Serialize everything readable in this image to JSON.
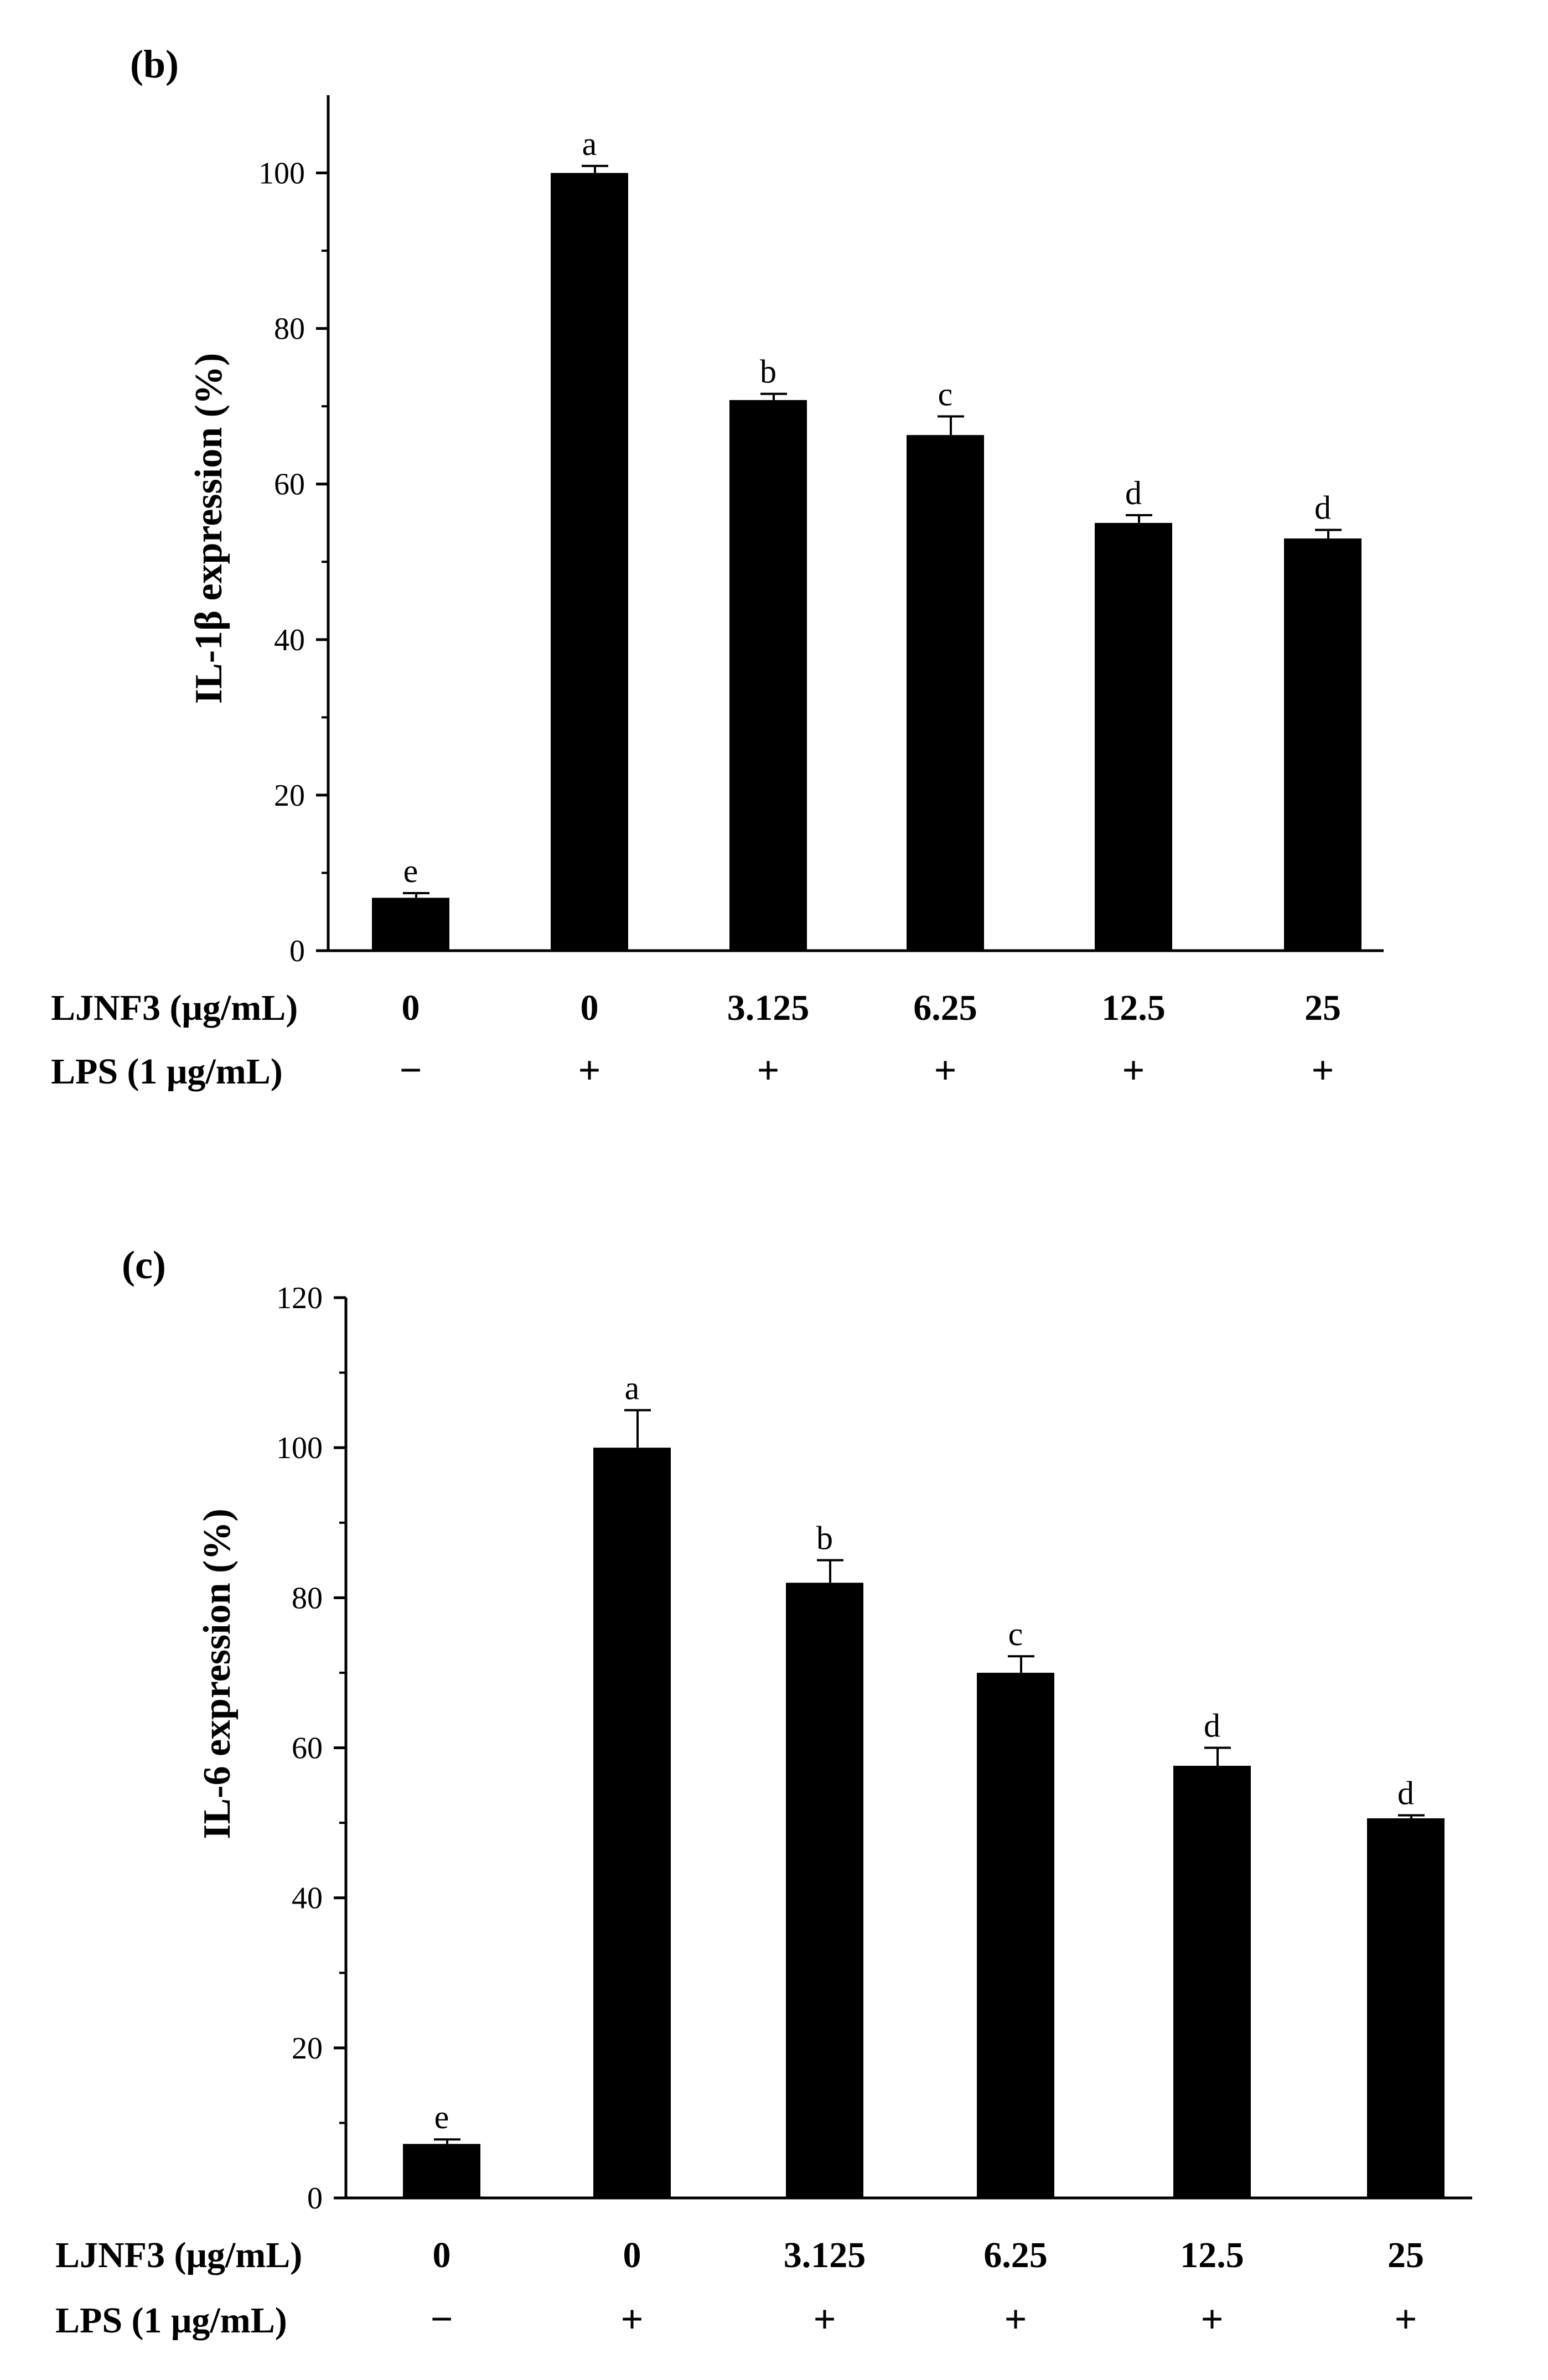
{
  "figure": {
    "bar_color": "#000000",
    "panels": [
      {
        "label": "(b)"
      },
      {
        "label": "(c)"
      }
    ]
  },
  "chart_data": [
    {
      "type": "bar",
      "panel": "(b)",
      "title": "",
      "xlabel": "",
      "ylabel": "IL-1β expression (%)",
      "ylim": [
        0,
        110
      ],
      "yticks": [
        0,
        20,
        40,
        60,
        80,
        100
      ],
      "ytick_labels": [
        "0",
        "20",
        "40",
        "60",
        "80",
        "100"
      ],
      "categories": [
        "0",
        "0",
        "3.125",
        "6.25",
        "12.5",
        "25"
      ],
      "values": [
        6.8,
        100,
        70.8,
        66.3,
        55.0,
        53.0
      ],
      "errors": [
        0.6,
        0.9,
        0.8,
        2.4,
        1.0,
        1.1
      ],
      "significance_letters": [
        "e",
        "a",
        "b",
        "c",
        "d",
        "d"
      ],
      "row_labels": [
        "LJNF3 (μg/mL)",
        "LPS (1 μg/mL)"
      ],
      "ljnf3_values": [
        "0",
        "0",
        "3.125",
        "6.25",
        "12.5",
        "25"
      ],
      "lps_signs": [
        "−",
        "+",
        "+",
        "+",
        "+",
        "+"
      ],
      "grid": false,
      "legend": "none"
    },
    {
      "type": "bar",
      "panel": "(c)",
      "title": "",
      "xlabel": "",
      "ylabel": "IL-6 expression (%)",
      "ylim": [
        0,
        120
      ],
      "yticks": [
        0,
        20,
        40,
        60,
        80,
        100,
        120
      ],
      "ytick_labels": [
        "0",
        "20",
        "40",
        "60",
        "80",
        "100",
        "120"
      ],
      "categories": [
        "0",
        "0",
        "3.125",
        "6.25",
        "12.5",
        "25"
      ],
      "values": [
        7.2,
        100,
        82.0,
        70.0,
        57.6,
        50.6
      ],
      "errors": [
        0.6,
        5.0,
        3.0,
        2.2,
        2.4,
        0.4
      ],
      "significance_letters": [
        "e",
        "a",
        "b",
        "c",
        "d",
        "d"
      ],
      "row_labels": [
        "LJNF3 (μg/mL)",
        "LPS (1 μg/mL)"
      ],
      "ljnf3_values": [
        "0",
        "0",
        "3.125",
        "6.25",
        "12.5",
        "25"
      ],
      "lps_signs": [
        "−",
        "+",
        "+",
        "+",
        "+",
        "+"
      ],
      "grid": false,
      "legend": "none"
    }
  ]
}
